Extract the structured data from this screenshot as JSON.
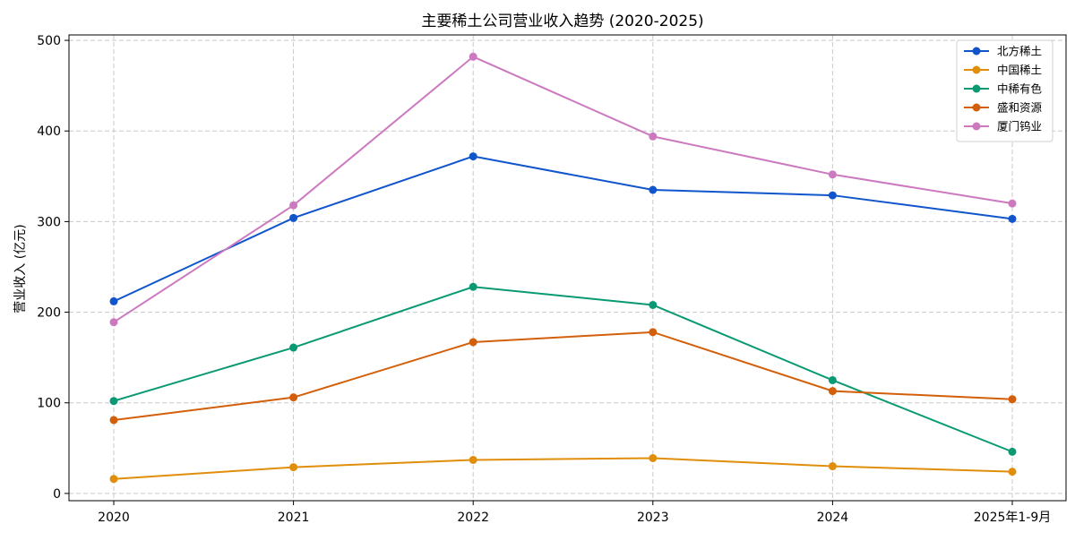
{
  "chart_data": {
    "type": "line",
    "title": "主要稀土公司营业收入趋势 (2020-2025)",
    "xlabel": "",
    "ylabel": "营业收入 (亿元)",
    "categories": [
      "2020",
      "2021",
      "2022",
      "2023",
      "2024",
      "2025年1-9月"
    ],
    "ylim": [
      -8,
      506
    ],
    "yticks": [
      0,
      100,
      200,
      300,
      400,
      500
    ],
    "grid": true,
    "legend_position": "top-right",
    "series": [
      {
        "name": "北方稀土",
        "color": "#1155cc",
        "values": [
          212,
          304,
          372,
          335,
          329,
          303
        ]
      },
      {
        "name": "中国稀土",
        "color": "#e08e0b",
        "values": [
          16,
          29,
          37,
          39,
          30,
          24
        ]
      },
      {
        "name": "中稀有色",
        "color": "#0a9a73",
        "values": [
          102,
          161,
          228,
          208,
          125,
          46
        ]
      },
      {
        "name": "盛和资源",
        "color": "#d35f0a",
        "values": [
          81,
          106,
          167,
          178,
          113,
          104
        ]
      },
      {
        "name": "厦门钨业",
        "color": "#cc79c0",
        "values": [
          189,
          318,
          482,
          394,
          352,
          320
        ]
      }
    ]
  }
}
